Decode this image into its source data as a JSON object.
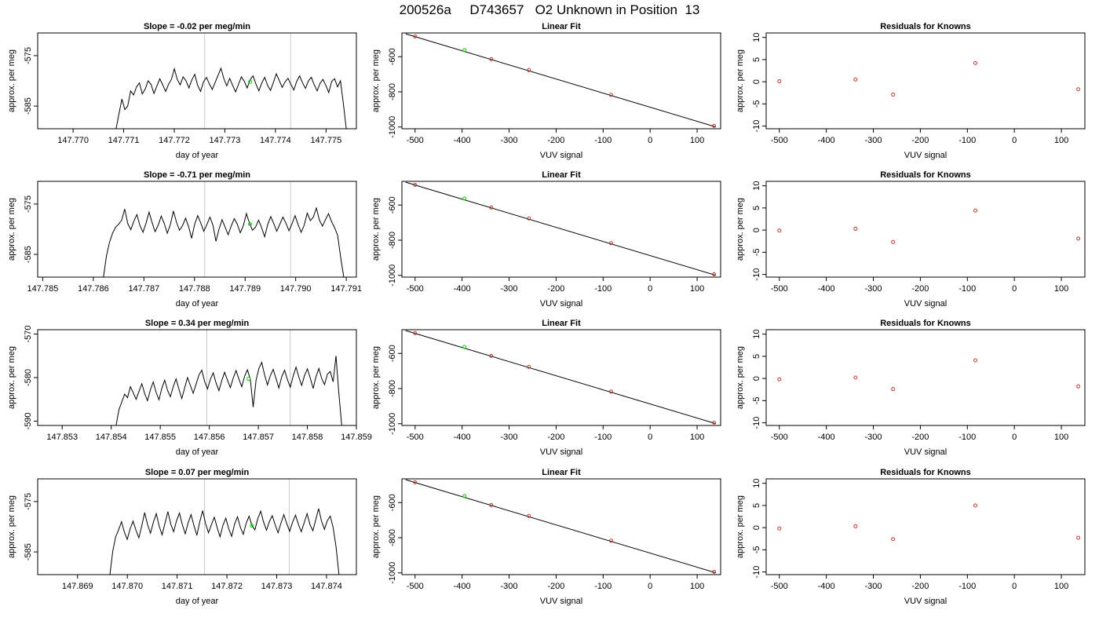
{
  "title": "200526a     D743657   O2 Unknown in Position  13",
  "colors": {
    "trace": "#000000",
    "known_point": "#c0392b",
    "unknown_point": "#00dd00",
    "vline": "#c8c8c8",
    "fit_line": "#000000"
  },
  "chart_data": [
    {
      "type": "line",
      "title": "Slope =  -0.02  per meg/min",
      "xlabel": "day of year",
      "ylabel": "approx. per meg",
      "xlim": [
        147.7693,
        147.7756
      ],
      "ylim": [
        -589.5,
        -570.5
      ],
      "xticks": [
        147.77,
        147.771,
        147.772,
        147.773,
        147.774,
        147.775
      ],
      "xtick_labels": [
        "147.770",
        "147.771",
        "147.772",
        "147.773",
        "147.774",
        "147.775"
      ],
      "yticks": [
        -575,
        -585
      ],
      "ytick_labels": [
        "-575",
        "-585"
      ],
      "vlines": [
        147.7726,
        147.7743
      ],
      "x_start": 147.77085,
      "x_end": 147.7754,
      "levels": [
        -589.5,
        -586.5,
        -583.6,
        -585.7,
        -585.0,
        -582.0,
        -582.8,
        -581.2,
        -580.4,
        -582.6,
        -581.6,
        -580.0,
        -580.7,
        -582.5,
        -581.0,
        -579.6,
        -580.8,
        -582.1,
        -580.7,
        -579.7,
        -577.6,
        -579.7,
        -580.8,
        -579.2,
        -580.0,
        -581.4,
        -579.8,
        -578.7,
        -580.9,
        -582.1,
        -580.2,
        -579.3,
        -580.6,
        -581.7,
        -580.3,
        -578.9,
        -577.5,
        -579.6,
        -581.0,
        -579.5,
        -580.9,
        -582.2,
        -580.7,
        -579.2,
        -580.1,
        -581.4,
        -579.8,
        -579.0,
        -580.6,
        -582.0,
        -580.4,
        -579.3,
        -580.9,
        -581.9,
        -580.3,
        -578.6,
        -579.9,
        -581.3,
        -580.2,
        -579.5,
        -580.7,
        -581.8,
        -580.1,
        -579.0,
        -580.4,
        -581.5,
        -580.0,
        -579.3,
        -580.8,
        -582.0,
        -580.5,
        -579.7,
        -580.9,
        -582.3,
        -580.1,
        -579.6,
        -581.2,
        -580.0,
        -584.5,
        -589.5
      ],
      "marker_x": 147.7735,
      "marker_y": -580.2
    },
    {
      "type": "scatter",
      "title": "Linear Fit",
      "xlabel": "VUV signal",
      "ylabel": "approx. per meg",
      "xlim": [
        -528,
        150
      ],
      "ylim": [
        -1010,
        -465
      ],
      "xticks": [
        -500,
        -400,
        -300,
        -200,
        -100,
        0,
        100
      ],
      "xtick_labels": [
        "-500",
        "-400",
        "-300",
        "-200",
        "-100",
        "0",
        "100"
      ],
      "yticks": [
        -600,
        -800,
        -1000
      ],
      "ytick_labels": [
        "-600",
        "-800",
        "-1000"
      ],
      "fit_line": {
        "x": [
          -520,
          140
        ],
        "y": [
          -470,
          -1000
        ]
      },
      "known_points": {
        "x": [
          -500,
          -338,
          -258,
          -83,
          136
        ],
        "y": [
          -485,
          -614,
          -676,
          -817,
          -994
        ]
      },
      "unknown_point": {
        "x": [
          -395
        ],
        "y": [
          -563
        ]
      }
    },
    {
      "type": "scatter",
      "title": "Residuals for Knowns",
      "xlabel": "VUV signal",
      "ylabel": "approx. per meg",
      "xlim": [
        -528,
        150
      ],
      "ylim": [
        -10.6,
        11
      ],
      "xticks": [
        -500,
        -400,
        -300,
        -200,
        -100,
        0,
        100
      ],
      "xtick_labels": [
        "-500",
        "-400",
        "-300",
        "-200",
        "-100",
        "0",
        "100"
      ],
      "yticks": [
        -10,
        -5,
        0,
        5,
        10
      ],
      "ytick_labels": [
        "-10",
        "-5",
        "0",
        "5",
        "10"
      ],
      "points": {
        "x": [
          -500,
          -338,
          -258,
          -83,
          136
        ],
        "y": [
          0.1,
          0.5,
          -2.9,
          4.2,
          -1.7
        ]
      }
    },
    {
      "type": "line",
      "title": "Slope =  -0.71  per meg/min",
      "xlabel": "day of year",
      "ylabel": "approx. per meg",
      "xlim": [
        147.7849,
        147.7912
      ],
      "ylim": [
        -589.5,
        -570.5
      ],
      "xticks": [
        147.785,
        147.786,
        147.787,
        147.788,
        147.789,
        147.79,
        147.791
      ],
      "xtick_labels": [
        "147.785",
        "147.786",
        "147.787",
        "147.788",
        "147.789",
        "147.790",
        "147.791"
      ],
      "yticks": [
        -575,
        -585
      ],
      "ytick_labels": [
        "-575",
        "-585"
      ],
      "vlines": [
        147.7882,
        147.7899
      ],
      "x_start": 147.7862,
      "x_end": 147.79095,
      "levels": [
        -589.5,
        -585.2,
        -582.6,
        -580.8,
        -579.6,
        -579.0,
        -578.2,
        -576.0,
        -578.9,
        -580.1,
        -578.4,
        -577.1,
        -579.3,
        -580.6,
        -578.8,
        -576.6,
        -578.7,
        -580.5,
        -579.2,
        -577.4,
        -578.9,
        -580.8,
        -579.1,
        -576.4,
        -578.6,
        -580.2,
        -579.3,
        -577.8,
        -579.5,
        -581.8,
        -579.0,
        -577.3,
        -578.8,
        -580.4,
        -579.1,
        -577.6,
        -579.2,
        -582.4,
        -580.0,
        -578.1,
        -579.6,
        -581.1,
        -579.4,
        -577.9,
        -579.0,
        -580.7,
        -579.3,
        -576.9,
        -578.8,
        -580.2,
        -579.6,
        -578.2,
        -579.7,
        -581.5,
        -579.1,
        -577.5,
        -578.9,
        -580.4,
        -579.0,
        -577.6,
        -578.8,
        -580.3,
        -578.9,
        -577.3,
        -579.1,
        -580.6,
        -579.2,
        -576.8,
        -578.3,
        -577.6,
        -575.8,
        -578.2,
        -579.4,
        -578.1,
        -576.9,
        -578.5,
        -579.7,
        -581.2,
        -585.6,
        -589.5
      ],
      "marker_x": 147.7891,
      "marker_y": -579.0
    },
    {
      "type": "scatter",
      "title": "Linear Fit",
      "xlabel": "VUV signal",
      "ylabel": "approx. per meg",
      "xlim": [
        -528,
        150
      ],
      "ylim": [
        -1010,
        -465
      ],
      "xticks": [
        -500,
        -400,
        -300,
        -200,
        -100,
        0,
        100
      ],
      "xtick_labels": [
        "-500",
        "-400",
        "-300",
        "-200",
        "-100",
        "0",
        "100"
      ],
      "yticks": [
        -600,
        -800,
        -1000
      ],
      "ytick_labels": [
        "-600",
        "-800",
        "-1000"
      ],
      "fit_line": {
        "x": [
          -520,
          140
        ],
        "y": [
          -470,
          -1000
        ]
      },
      "known_points": {
        "x": [
          -500,
          -338,
          -258,
          -83,
          136
        ],
        "y": [
          -485,
          -614,
          -676,
          -817,
          -994
        ]
      },
      "unknown_point": {
        "x": [
          -395
        ],
        "y": [
          -563
        ]
      }
    },
    {
      "type": "scatter",
      "title": "Residuals for Knowns",
      "xlabel": "VUV signal",
      "ylabel": "approx. per meg",
      "xlim": [
        -528,
        150
      ],
      "ylim": [
        -10.6,
        11
      ],
      "xticks": [
        -500,
        -400,
        -300,
        -200,
        -100,
        0,
        100
      ],
      "xtick_labels": [
        "-500",
        "-400",
        "-300",
        "-200",
        "-100",
        "0",
        "100"
      ],
      "yticks": [
        -10,
        -5,
        0,
        5,
        10
      ],
      "ytick_labels": [
        "-10",
        "-5",
        "0",
        "5",
        "10"
      ],
      "points": {
        "x": [
          -500,
          -338,
          -258,
          -83,
          136
        ],
        "y": [
          -0.1,
          0.3,
          -2.7,
          4.4,
          -1.9
        ]
      }
    },
    {
      "type": "line",
      "title": "Slope =  0.34  per meg/min",
      "xlabel": "day of year",
      "ylabel": "approx. per meg",
      "xlim": [
        147.8525,
        147.859
      ],
      "ylim": [
        -591.0,
        -569.0
      ],
      "xticks": [
        147.853,
        147.854,
        147.855,
        147.856,
        147.857,
        147.858,
        147.859
      ],
      "xtick_labels": [
        "147.853",
        "147.854",
        "147.855",
        "147.856",
        "147.857",
        "147.858",
        "147.859"
      ],
      "yticks": [
        -570,
        -580,
        -590
      ],
      "ytick_labels": [
        "-570",
        "-580",
        "-590"
      ],
      "vlines": [
        147.85595,
        147.85765
      ],
      "x_start": 147.8541,
      "x_end": 147.8587,
      "levels": [
        -591.0,
        -587.3,
        -585.6,
        -583.8,
        -584.6,
        -582.1,
        -583.5,
        -585.0,
        -583.2,
        -581.4,
        -583.7,
        -585.3,
        -582.8,
        -581.0,
        -583.4,
        -585.1,
        -582.5,
        -580.6,
        -582.9,
        -584.4,
        -582.1,
        -580.3,
        -582.7,
        -584.8,
        -582.4,
        -580.0,
        -581.8,
        -583.6,
        -581.5,
        -579.4,
        -578.3,
        -580.9,
        -582.6,
        -580.4,
        -578.9,
        -581.2,
        -583.0,
        -580.7,
        -578.8,
        -580.6,
        -582.3,
        -580.1,
        -578.4,
        -580.3,
        -582.1,
        -579.7,
        -578.2,
        -580.4,
        -586.8,
        -580.6,
        -577.9,
        -576.5,
        -579.4,
        -581.7,
        -579.6,
        -578.1,
        -580.2,
        -582.4,
        -579.8,
        -578.3,
        -580.5,
        -582.2,
        -579.7,
        -577.6,
        -579.9,
        -581.8,
        -579.5,
        -578.0,
        -580.1,
        -582.5,
        -579.8,
        -577.9,
        -580.2,
        -581.6,
        -579.2,
        -578.6,
        -581.0,
        -575.0,
        -583.5,
        -591.0
      ],
      "marker_x": 147.8568,
      "marker_y": -580.3
    },
    {
      "type": "scatter",
      "title": "Linear Fit",
      "xlabel": "VUV signal",
      "ylabel": "approx. per meg",
      "xlim": [
        -528,
        150
      ],
      "ylim": [
        -1010,
        -465
      ],
      "xticks": [
        -500,
        -400,
        -300,
        -200,
        -100,
        0,
        100
      ],
      "xtick_labels": [
        "-500",
        "-400",
        "-300",
        "-200",
        "-100",
        "0",
        "100"
      ],
      "yticks": [
        -600,
        -800,
        -1000
      ],
      "ytick_labels": [
        "-600",
        "-800",
        "-1000"
      ],
      "fit_line": {
        "x": [
          -520,
          140
        ],
        "y": [
          -470,
          -1000
        ]
      },
      "known_points": {
        "x": [
          -500,
          -338,
          -258,
          -83,
          136
        ],
        "y": [
          -485,
          -614,
          -676,
          -817,
          -994
        ]
      },
      "unknown_point": {
        "x": [
          -395
        ],
        "y": [
          -563
        ]
      }
    },
    {
      "type": "scatter",
      "title": "Residuals for Knowns",
      "xlabel": "VUV signal",
      "ylabel": "approx. per meg",
      "xlim": [
        -528,
        150
      ],
      "ylim": [
        -10.6,
        11
      ],
      "xticks": [
        -500,
        -400,
        -300,
        -200,
        -100,
        0,
        100
      ],
      "xtick_labels": [
        "-500",
        "-400",
        "-300",
        "-200",
        "-100",
        "0",
        "100"
      ],
      "yticks": [
        -10,
        -5,
        0,
        5,
        10
      ],
      "ytick_labels": [
        "-10",
        "-5",
        "0",
        "5",
        "10"
      ],
      "points": {
        "x": [
          -500,
          -338,
          -258,
          -83,
          136
        ],
        "y": [
          -0.2,
          0.2,
          -2.4,
          4.1,
          -1.8
        ]
      }
    },
    {
      "type": "line",
      "title": "Slope =  0.07  per meg/min",
      "xlabel": "day of year",
      "ylabel": "approx. per meg",
      "xlim": [
        147.8682,
        147.8746
      ],
      "ylim": [
        -589.5,
        -570.5
      ],
      "xticks": [
        147.869,
        147.87,
        147.871,
        147.872,
        147.873,
        147.874
      ],
      "xtick_labels": [
        "147.869",
        "147.870",
        "147.871",
        "147.872",
        "147.873",
        "147.874"
      ],
      "yticks": [
        -575,
        -585
      ],
      "ytick_labels": [
        "-575",
        "-585"
      ],
      "vlines": [
        147.87155,
        147.87325
      ],
      "x_start": 147.86965,
      "x_end": 147.87425,
      "levels": [
        -589.5,
        -584.8,
        -582.0,
        -580.6,
        -579.0,
        -581.1,
        -582.5,
        -580.4,
        -578.9,
        -580.7,
        -582.2,
        -579.8,
        -577.2,
        -579.6,
        -581.3,
        -579.1,
        -577.4,
        -579.9,
        -581.6,
        -579.3,
        -577.0,
        -579.5,
        -581.0,
        -578.8,
        -577.3,
        -579.6,
        -581.4,
        -579.2,
        -577.6,
        -579.8,
        -581.7,
        -579.0,
        -576.8,
        -579.4,
        -581.2,
        -579.6,
        -578.1,
        -580.2,
        -582.0,
        -579.7,
        -578.3,
        -580.4,
        -581.9,
        -579.5,
        -578.0,
        -580.1,
        -581.5,
        -579.3,
        -577.9,
        -579.8,
        -580.6,
        -578.4,
        -576.9,
        -579.1,
        -580.7,
        -579.0,
        -577.8,
        -579.6,
        -581.2,
        -579.3,
        -577.6,
        -579.4,
        -580.9,
        -579.1,
        -577.7,
        -579.5,
        -581.0,
        -579.2,
        -577.4,
        -579.6,
        -580.8,
        -578.6,
        -576.4,
        -578.9,
        -580.5,
        -578.8,
        -577.9,
        -580.2,
        -584.0,
        -589.5
      ],
      "marker_x": 147.8725,
      "marker_y": -579.8
    },
    {
      "type": "scatter",
      "title": "Linear Fit",
      "xlabel": "VUV signal",
      "ylabel": "approx. per meg",
      "xlim": [
        -528,
        150
      ],
      "ylim": [
        -1010,
        -465
      ],
      "xticks": [
        -500,
        -400,
        -300,
        -200,
        -100,
        0,
        100
      ],
      "xtick_labels": [
        "-500",
        "-400",
        "-300",
        "-200",
        "-100",
        "0",
        "100"
      ],
      "yticks": [
        -600,
        -800,
        -1000
      ],
      "ytick_labels": [
        "-600",
        "-800",
        "-1000"
      ],
      "fit_line": {
        "x": [
          -520,
          140
        ],
        "y": [
          -470,
          -1000
        ]
      },
      "known_points": {
        "x": [
          -500,
          -338,
          -258,
          -83,
          136
        ],
        "y": [
          -485,
          -614,
          -676,
          -817,
          -994
        ]
      },
      "unknown_point": {
        "x": [
          -395
        ],
        "y": [
          -563
        ]
      }
    },
    {
      "type": "scatter",
      "title": "Residuals for Knowns",
      "xlabel": "VUV signal",
      "ylabel": "approx. per meg",
      "xlim": [
        -528,
        150
      ],
      "ylim": [
        -10.6,
        11
      ],
      "xticks": [
        -500,
        -400,
        -300,
        -200,
        -100,
        0,
        100
      ],
      "xtick_labels": [
        "-500",
        "-400",
        "-300",
        "-200",
        "-100",
        "0",
        "100"
      ],
      "yticks": [
        -10,
        -5,
        0,
        5,
        10
      ],
      "ytick_labels": [
        "-10",
        "-5",
        "0",
        "5",
        "10"
      ],
      "points": {
        "x": [
          -500,
          -338,
          -258,
          -83,
          136
        ],
        "y": [
          -0.2,
          0.3,
          -2.6,
          5.0,
          -2.3
        ]
      }
    }
  ]
}
